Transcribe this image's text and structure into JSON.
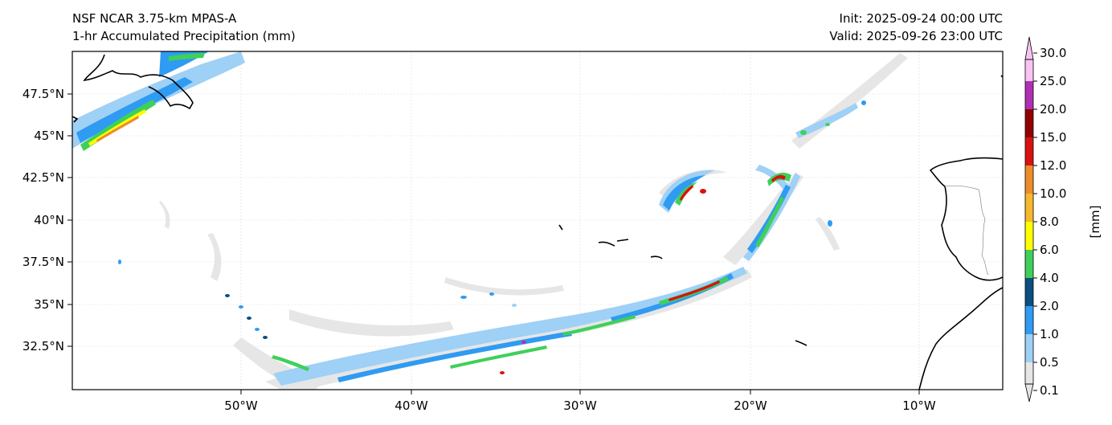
{
  "header": {
    "model_title": "NSF NCAR 3.75-km MPAS-A",
    "field_title": "1-hr Accumulated Precipitation (mm)",
    "init_text": "Init: 2025-09-24 00:00 UTC",
    "valid_text": "Valid: 2025-09-26 23:00 UTC"
  },
  "map": {
    "lon_ticks": [
      "50°W",
      "40°W",
      "30°W",
      "20°W",
      "10°W"
    ],
    "lat_ticks": [
      "47.5°N",
      "45°N",
      "42.5°N",
      "40°N",
      "37.5°N",
      "35°N",
      "32.5°N"
    ],
    "frame_color": "#000000",
    "coastline_color": "#000000"
  },
  "colorbar": {
    "label": "[mm]",
    "levels": [
      "0.1",
      "0.5",
      "1.0",
      "2.0",
      "4.0",
      "6.0",
      "8.0",
      "10.0",
      "12.0",
      "15.0",
      "20.0",
      "25.0",
      "30.0"
    ],
    "colors": [
      "#e6e6e6",
      "#9fd0f6",
      "#2f9bf2",
      "#0a4f7f",
      "#3fd05a",
      "#ffff00",
      "#f5b82e",
      "#ee8c2a",
      "#d8120f",
      "#920000",
      "#b02fb5",
      "#f8c3f4"
    ]
  }
}
